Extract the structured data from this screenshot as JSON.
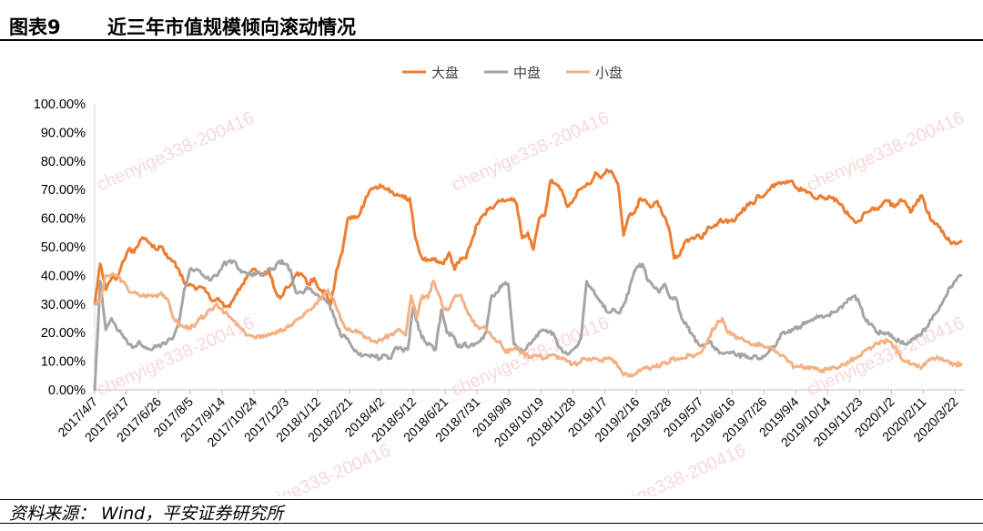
{
  "header": {
    "figure_number": "图表9",
    "title": "近三年市值规模倾向滚动情况"
  },
  "source": "资料来源： Wind，平安证券研究所",
  "watermark": "chenyige338-200416",
  "colors": {
    "大盘": "#ED7D31",
    "中盘": "#A5A5A5",
    "小盘": "#F4B183"
  },
  "chart_data": {
    "type": "line",
    "title": "",
    "xlabel": "",
    "ylabel": "",
    "ylim": [
      0,
      100
    ],
    "y_ticks": [
      "0.00%",
      "10.00%",
      "20.00%",
      "30.00%",
      "40.00%",
      "50.00%",
      "60.00%",
      "70.00%",
      "80.00%",
      "90.00%",
      "100.00%"
    ],
    "grid": false,
    "legend_position": "top-center",
    "x_tick_labels": [
      "2017/4/7",
      "2017/5/17",
      "2017/6/26",
      "2017/8/5",
      "2017/9/14",
      "2017/10/24",
      "2017/12/3",
      "2018/1/12",
      "2018/2/21",
      "2018/4/2",
      "2018/5/12",
      "2018/6/21",
      "2018/7/31",
      "2018/9/9",
      "2018/10/19",
      "2018/11/28",
      "2019/1/7",
      "2019/2/16",
      "2019/3/28",
      "2019/5/7",
      "2019/6/16",
      "2019/7/26",
      "2019/9/4",
      "2019/10/14",
      "2019/11/23",
      "2020/1/2",
      "2020/2/11",
      "2020/3/22"
    ],
    "x_start": "2017/4/7",
    "x_end": "2020/4/3",
    "series": [
      {
        "name": "大盘",
        "color": "#ED7D31",
        "values": [
          30,
          44,
          35,
          39,
          39,
          45,
          49,
          48,
          52,
          53,
          51,
          49,
          50,
          46,
          45,
          42,
          37,
          37,
          35,
          36,
          34,
          31,
          32,
          29,
          29,
          33,
          36,
          39,
          42,
          41,
          40,
          42,
          35,
          32,
          36,
          37,
          41,
          40,
          37,
          39,
          35,
          34,
          30,
          42,
          48,
          60,
          60,
          61,
          66,
          70,
          71,
          71,
          70,
          69,
          68,
          67,
          67,
          53,
          47,
          45,
          46,
          45,
          44,
          48,
          42,
          46,
          46,
          52,
          58,
          61,
          63,
          64,
          66,
          66,
          67,
          65,
          53,
          55,
          49,
          60,
          61,
          73,
          72,
          70,
          64,
          66,
          70,
          71,
          72,
          76,
          74,
          77,
          76,
          72,
          54,
          61,
          62,
          67,
          66,
          64,
          66,
          61,
          57,
          46,
          47,
          52,
          53,
          54,
          53,
          57,
          57,
          59,
          59,
          59,
          60,
          62,
          65,
          65,
          68,
          68,
          70,
          72,
          72,
          73,
          73,
          70,
          70,
          69,
          67,
          68,
          67,
          67,
          66,
          64,
          61,
          59,
          59,
          62,
          63,
          63,
          65,
          66,
          64,
          66,
          66,
          62,
          65,
          68,
          62,
          59,
          57,
          54,
          52,
          51,
          52
        ],
        "noise_seed": 1
      },
      {
        "name": "中盘",
        "color": "#A5A5A5",
        "values": [
          0,
          38,
          21,
          25,
          21,
          19,
          16,
          15,
          17,
          15,
          14,
          15,
          16,
          17,
          18,
          23,
          35,
          42,
          42,
          41,
          39,
          39,
          40,
          44,
          45,
          45,
          42,
          41,
          40,
          41,
          40,
          42,
          42,
          45,
          44,
          42,
          34,
          34,
          36,
          34,
          33,
          32,
          30,
          25,
          19,
          18,
          15,
          13,
          12,
          12,
          12,
          11,
          12,
          11,
          15,
          14,
          14,
          29,
          21,
          17,
          16,
          14,
          28,
          20,
          19,
          15,
          16,
          15,
          16,
          17,
          20,
          33,
          34,
          37,
          37,
          16,
          14,
          14,
          16,
          19,
          21,
          20,
          20,
          15,
          13,
          13,
          15,
          18,
          38,
          35,
          32,
          29,
          27,
          28,
          27,
          31,
          38,
          43,
          44,
          38,
          36,
          34,
          37,
          32,
          32,
          25,
          22,
          19,
          16,
          15,
          17,
          14,
          13,
          13,
          13,
          12,
          12,
          11,
          12,
          11,
          12,
          14,
          16,
          20,
          20,
          21,
          22,
          23,
          24,
          25,
          26,
          26,
          27,
          28,
          30,
          32,
          33,
          29,
          24,
          23,
          20,
          20,
          20,
          18,
          17,
          16,
          17,
          19,
          20,
          22,
          26,
          28,
          32,
          36,
          38,
          40
        ],
        "noise_seed": 2
      },
      {
        "name": "小盘",
        "color": "#F4B183",
        "values": [
          30,
          31,
          40,
          40,
          40,
          38,
          35,
          34,
          33,
          33,
          33,
          33,
          34,
          32,
          26,
          23,
          22,
          22,
          22,
          25,
          26,
          28,
          30,
          28,
          26,
          24,
          22,
          20,
          19,
          18,
          19,
          19,
          20,
          20,
          21,
          22,
          24,
          25,
          27,
          28,
          30,
          33,
          35,
          32,
          27,
          22,
          21,
          21,
          20,
          18,
          17,
          17,
          18,
          19,
          20,
          21,
          19,
          33,
          25,
          33,
          32,
          38,
          33,
          28,
          29,
          33,
          33,
          28,
          24,
          22,
          22,
          20,
          18,
          17,
          13,
          14,
          15,
          13,
          12,
          12,
          12,
          11,
          12,
          12,
          11,
          10,
          9,
          9,
          11,
          11,
          11,
          10,
          11,
          11,
          9,
          6,
          5,
          5,
          7,
          8,
          7,
          8,
          9,
          9,
          11,
          11,
          11,
          12,
          12,
          13,
          16,
          20,
          23,
          25,
          20,
          19,
          18,
          17,
          16,
          16,
          16,
          15,
          14,
          13,
          12,
          10,
          8,
          8,
          8,
          8,
          7,
          7,
          7,
          8,
          8,
          9,
          10,
          11,
          12,
          14,
          15,
          16,
          17,
          17,
          15,
          12,
          10,
          9,
          8,
          8,
          10,
          11,
          11,
          10,
          9,
          9,
          9
        ],
        "noise_seed": 3
      }
    ]
  }
}
